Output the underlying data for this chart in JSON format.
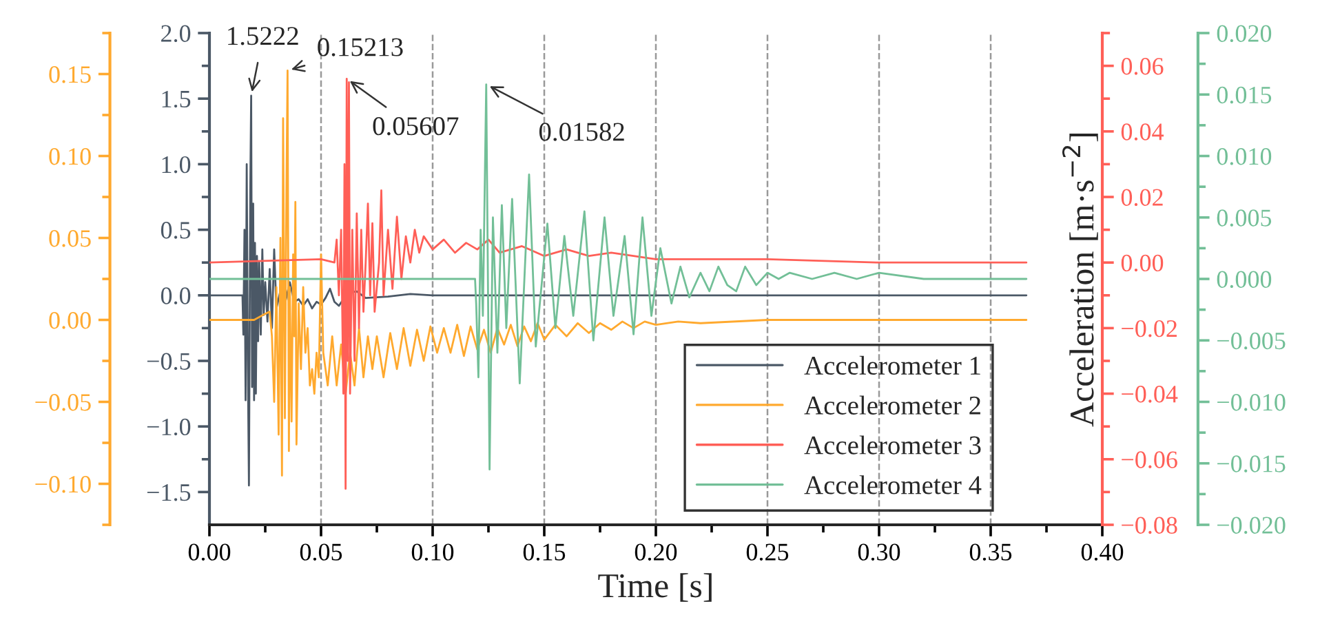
{
  "chart_data": [
    {
      "type": "line",
      "xlabel": "Time [s]",
      "xlim": [
        0,
        0.4
      ],
      "xticks": [
        {
          "value": 0,
          "label": "0.00"
        },
        {
          "value": 0.05,
          "label": "0.05"
        },
        {
          "value": 0.1,
          "label": "0.10"
        },
        {
          "value": 0.15,
          "label": "0.15"
        },
        {
          "value": 0.2,
          "label": "0.20"
        },
        {
          "value": 0.25,
          "label": "0.25"
        },
        {
          "value": 0.3,
          "label": "0.30"
        },
        {
          "value": 0.35,
          "label": "0.35"
        },
        {
          "value": 0.4,
          "label": "0.40"
        },
        {
          "value": 0.025,
          "label": null
        },
        {
          "value": 0.075,
          "label": null
        },
        {
          "value": 0.125,
          "label": null
        },
        {
          "value": 0.175,
          "label": null
        },
        {
          "value": 0.225,
          "label": null
        },
        {
          "value": 0.275,
          "label": null
        },
        {
          "value": 0.325,
          "label": null
        },
        {
          "value": 0.375,
          "label": null
        }
      ],
      "ylim": [
        -1.75,
        2.0
      ],
      "yticks": [
        {
          "value": -1.5,
          "label": "−1.5"
        },
        {
          "value": -1.0,
          "label": "−1.0"
        },
        {
          "value": -0.5,
          "label": "−0.5"
        },
        {
          "value": 0,
          "label": "0.0"
        },
        {
          "value": 0.5,
          "label": "0.5"
        },
        {
          "value": 1.0,
          "label": "1.0"
        },
        {
          "value": 1.5,
          "label": "1.5"
        },
        {
          "value": 2.0,
          "label": "2.0"
        },
        {
          "value": -1.25,
          "label": null
        },
        {
          "value": -0.75,
          "label": null
        },
        {
          "value": -0.25,
          "label": null
        },
        {
          "value": 0.25,
          "label": null
        },
        {
          "value": 0.75,
          "label": null
        },
        {
          "value": 1.25,
          "label": null
        },
        {
          "value": 1.75,
          "label": null
        }
      ],
      "grid": "x",
      "legend": "bottom right",
      "line_style": "solid",
      "marker": "none",
      "annotations": [
        {
          "text": "1.5222",
          "x": 0.0187,
          "y": 1.5222
        }
      ],
      "series": [
        {
          "name": "Accelerometer 1",
          "color": "#4b5866",
          "x": [
            0,
            0.0148,
            0.0152,
            0.0157,
            0.0162,
            0.0167,
            0.0172,
            0.0177,
            0.0183,
            0.0187,
            0.0191,
            0.0196,
            0.02,
            0.0204,
            0.0208,
            0.0213,
            0.0218,
            0.0223,
            0.023,
            0.0237,
            0.0243,
            0.025,
            0.026,
            0.027,
            0.028,
            0.029,
            0.03,
            0.032,
            0.034,
            0.036,
            0.038,
            0.04,
            0.042,
            0.044,
            0.046,
            0.048,
            0.05,
            0.052,
            0.054,
            0.056,
            0.058,
            0.06,
            0.062,
            0.066,
            0.07,
            0.08,
            0.09,
            0.1,
            0.366
          ],
          "values": [
            0,
            0,
            -0.3,
            0.5,
            -0.8,
            1.0,
            -0.5,
            -1.45,
            0.8,
            1.5222,
            -0.7,
            0.7,
            -0.8,
            0.4,
            -0.75,
            0.3,
            -0.35,
            0.25,
            -0.3,
            0.35,
            -0.15,
            0.1,
            -0.2,
            0.2,
            -0.25,
            0.35,
            -0.1,
            0.05,
            -0.05,
            0.1,
            -0.05,
            -0.03,
            -0.08,
            -0.03,
            -0.1,
            -0.05,
            -0.07,
            -0.02,
            0.05,
            -0.05,
            -0.08,
            -0.03,
            0.02,
            0.03,
            -0.02,
            -0.01,
            0.01,
            0,
            0
          ]
        }
      ]
    },
    {
      "type": "line",
      "tick_labels": "y",
      "xlim": [
        0,
        0.4
      ],
      "ylim": [
        -0.125,
        0.175
      ],
      "yticks": [
        {
          "value": -0.1,
          "label": "−0.10"
        },
        {
          "value": -0.05,
          "label": "−0.05"
        },
        {
          "value": 0,
          "label": "0.00"
        },
        {
          "value": 0.05,
          "label": "0.05"
        },
        {
          "value": 0.1,
          "label": "0.10"
        },
        {
          "value": 0.15,
          "label": "0.15"
        }
      ],
      "legend": "bottom right",
      "line_style": "solid",
      "marker": "none",
      "annotations": [
        {
          "text": "0.15213",
          "x": 0.035,
          "y": 0.15213
        }
      ],
      "series": [
        {
          "name": "Accelerometer 2",
          "color": "#ffa92e",
          "x": [
            0,
            0.02,
            0.024,
            0.027,
            0.028,
            0.029,
            0.03,
            0.031,
            0.0318,
            0.0325,
            0.033,
            0.0338,
            0.0345,
            0.035,
            0.0356,
            0.036,
            0.0368,
            0.0375,
            0.038,
            0.0385,
            0.039,
            0.04,
            0.041,
            0.042,
            0.043,
            0.044,
            0.045,
            0.046,
            0.047,
            0.048,
            0.049,
            0.05,
            0.051,
            0.053,
            0.055,
            0.057,
            0.059,
            0.061,
            0.063,
            0.065,
            0.067,
            0.069,
            0.071,
            0.073,
            0.075,
            0.078,
            0.081,
            0.084,
            0.087,
            0.09,
            0.093,
            0.096,
            0.099,
            0.102,
            0.105,
            0.108,
            0.111,
            0.114,
            0.117,
            0.12,
            0.123,
            0.126,
            0.129,
            0.132,
            0.135,
            0.138,
            0.141,
            0.144,
            0.147,
            0.15,
            0.155,
            0.16,
            0.165,
            0.17,
            0.175,
            0.18,
            0.185,
            0.19,
            0.195,
            0.2,
            0.21,
            0.22,
            0.25,
            0.3,
            0.366
          ],
          "values": [
            0,
            0,
            0.003,
            0.005,
            -0.01,
            -0.05,
            0.02,
            -0.07,
            0.05,
            -0.095,
            0.123,
            -0.06,
            0.08,
            0.15213,
            -0.08,
            0.02,
            -0.062,
            0.04,
            -0.01,
            0.072,
            -0.076,
            0.01,
            -0.03,
            0.02,
            -0.02,
            -0.005,
            -0.04,
            -0.03,
            -0.045,
            -0.02,
            -0.035,
            0.04,
            -0.02,
            -0.04,
            -0.01,
            -0.04,
            -0.015,
            -0.045,
            -0.02,
            -0.04,
            -0.005,
            -0.035,
            -0.01,
            -0.03,
            -0.01,
            -0.035,
            -0.008,
            -0.03,
            -0.005,
            -0.028,
            -0.006,
            -0.025,
            -0.004,
            -0.02,
            -0.005,
            -0.02,
            -0.003,
            -0.022,
            -0.004,
            -0.018,
            -0.006,
            -0.02,
            -0.005,
            -0.015,
            -0.003,
            -0.016,
            -0.004,
            -0.013,
            -0.002,
            -0.012,
            -0.003,
            -0.01,
            -0.002,
            -0.008,
            -0.002,
            -0.006,
            -0.001,
            -0.005,
            -0.001,
            -0.003,
            -0.001,
            -0.002,
            0,
            0,
            0
          ]
        }
      ]
    },
    {
      "type": "line",
      "ylabel": "Acceleration [m·s$^{−2}$]",
      "tick_labels": "y",
      "xlim": [
        0,
        0.4
      ],
      "ylim": [
        -0.08,
        0.07
      ],
      "yticks": [
        {
          "value": -0.08,
          "label": "−0.08"
        },
        {
          "value": -0.06,
          "label": "−0.06"
        },
        {
          "value": -0.04,
          "label": "−0.04"
        },
        {
          "value": -0.02,
          "label": "−0.02"
        },
        {
          "value": 0,
          "label": "0.00"
        },
        {
          "value": 0.02,
          "label": "0.02"
        },
        {
          "value": 0.04,
          "label": "0.04"
        },
        {
          "value": 0.06,
          "label": "0.06"
        },
        {
          "value": -0.07,
          "label": null
        },
        {
          "value": -0.05,
          "label": null
        },
        {
          "value": -0.03,
          "label": null
        },
        {
          "value": -0.01,
          "label": null
        },
        {
          "value": 0.01,
          "label": null
        },
        {
          "value": 0.03,
          "label": null
        },
        {
          "value": 0.05,
          "label": null
        },
        {
          "value": 0.07,
          "label": null
        }
      ],
      "legend": "bottom right",
      "line_style": "solid",
      "marker": "none",
      "annotations": [
        {
          "text": "0.05607",
          "x": 0.0615,
          "y": 0.05607
        }
      ],
      "series": [
        {
          "name": "Accelerometer 3",
          "color": "#ff5f57",
          "x": [
            0,
            0.05,
            0.056,
            0.057,
            0.058,
            0.059,
            0.06,
            0.0605,
            0.061,
            0.0615,
            0.062,
            0.0625,
            0.063,
            0.064,
            0.065,
            0.066,
            0.067,
            0.068,
            0.069,
            0.07,
            0.071,
            0.072,
            0.073,
            0.074,
            0.076,
            0.077,
            0.078,
            0.08,
            0.082,
            0.084,
            0.086,
            0.088,
            0.09,
            0.092,
            0.094,
            0.096,
            0.1,
            0.105,
            0.11,
            0.115,
            0.12,
            0.125,
            0.13,
            0.14,
            0.15,
            0.16,
            0.17,
            0.18,
            0.2,
            0.25,
            0.3,
            0.366
          ],
          "values": [
            0,
            0.001,
            0,
            0.007,
            -0.01,
            0.01,
            -0.04,
            0.03,
            -0.069,
            0.05607,
            -0.03,
            0.055,
            -0.04,
            0.01,
            -0.03,
            0.015,
            -0.02,
            0.01,
            -0.015,
            0,
            0.018,
            -0.01,
            0.012,
            -0.015,
            0,
            0.022,
            -0.01,
            0.01,
            -0.008,
            0.014,
            -0.005,
            0.008,
            0,
            0.01,
            0.003,
            0.008,
            0.004,
            0.007,
            0.003,
            0.006,
            0.004,
            0.007,
            0.003,
            0.005,
            0.002,
            0.004,
            0.002,
            0.003,
            0.001,
            0.001,
            0,
            0
          ]
        }
      ]
    },
    {
      "type": "line",
      "tick_labels": "y",
      "xlim": [
        0,
        0.4
      ],
      "ylim": [
        -0.02,
        0.02
      ],
      "yticks": [
        {
          "value": -0.02,
          "label": "−0.020"
        },
        {
          "value": -0.015,
          "label": "−0.015"
        },
        {
          "value": -0.01,
          "label": "−0.010"
        },
        {
          "value": -0.005,
          "label": "−0.005"
        },
        {
          "value": 0,
          "label": "0.000"
        },
        {
          "value": 0.005,
          "label": "0.005"
        },
        {
          "value": 0.01,
          "label": "0.010"
        },
        {
          "value": 0.015,
          "label": "0.015"
        },
        {
          "value": 0.02,
          "label": "0.020"
        }
      ],
      "legend": "bottom right",
      "line_style": "solid",
      "marker": "none",
      "annotations": [
        {
          "text": "0.01582",
          "x": 0.124,
          "y": 0.01582
        }
      ],
      "series": [
        {
          "name": "Accelerometer 4",
          "color": "#72bf97",
          "x": [
            0,
            0.119,
            0.1195,
            0.1205,
            0.1215,
            0.1225,
            0.124,
            0.1255,
            0.127,
            0.129,
            0.131,
            0.133,
            0.1356,
            0.139,
            0.1432,
            0.1462,
            0.1514,
            0.155,
            0.159,
            0.163,
            0.168,
            0.172,
            0.177,
            0.181,
            0.186,
            0.19,
            0.194,
            0.198,
            0.202,
            0.207,
            0.211,
            0.215,
            0.22,
            0.224,
            0.228,
            0.232,
            0.236,
            0.24,
            0.245,
            0.25,
            0.255,
            0.26,
            0.27,
            0.28,
            0.29,
            0.3,
            0.32,
            0.34,
            0.366
          ],
          "values": [
            0,
            0,
            -0.002,
            -0.008,
            0.004,
            -0.003,
            0.01582,
            -0.0155,
            0.005,
            -0.006,
            0.006,
            -0.004,
            0.0065,
            -0.0085,
            0.0085,
            -0.0055,
            0.0045,
            -0.004,
            0.0035,
            -0.003,
            0.0055,
            -0.005,
            0.005,
            -0.003,
            0.0035,
            -0.0045,
            0.005,
            -0.003,
            0.0025,
            -0.002,
            0.001,
            -0.0015,
            0.0005,
            -0.001,
            0.001,
            -0.0005,
            -0.001,
            0.001,
            -0.0005,
            0.0005,
            0,
            0.0005,
            0,
            0.0005,
            0,
            0.0005,
            0,
            0,
            0
          ]
        }
      ]
    }
  ]
}
